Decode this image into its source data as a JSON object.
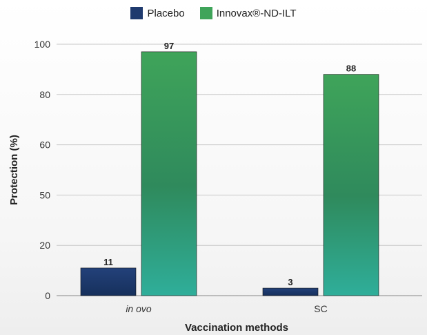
{
  "chart_data": {
    "type": "bar",
    "categories": [
      "in ovo",
      "SC"
    ],
    "series": [
      {
        "name": "Placebo",
        "values": [
          11,
          3
        ],
        "color": "#1f3a6e"
      },
      {
        "name": "Innovax®-ND-ILT",
        "values": [
          97,
          88
        ],
        "color": "#3fa45a"
      }
    ],
    "yticks": [
      "100",
      "80",
      "60",
      "50",
      "20",
      "0"
    ],
    "xlabel": "Vaccination methods",
    "ylabel": "Protection (%)",
    "ylim": [
      0,
      100
    ],
    "grid": true,
    "legend_position": "top-center"
  }
}
